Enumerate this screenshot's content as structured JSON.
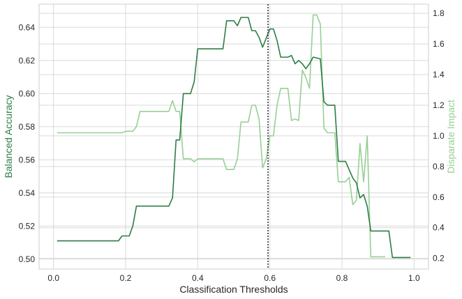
{
  "chart_data": {
    "type": "line",
    "xlabel": "Classification Thresholds",
    "ylabel": "Balanced Accuracy",
    "y2label": "Disparate Impact",
    "xlim": [
      -0.04,
      1.04
    ],
    "ylim": [
      0.494,
      0.654
    ],
    "y2lim": [
      0.13,
      1.86
    ],
    "xticks": [
      "0.0",
      "0.2",
      "0.4",
      "0.6",
      "0.8",
      "1.0"
    ],
    "yticks": [
      "0.50",
      "0.52",
      "0.54",
      "0.56",
      "0.58",
      "0.60",
      "0.62",
      "0.64"
    ],
    "y2ticks": [
      "0.2",
      "0.4",
      "0.6",
      "0.8",
      "1.0",
      "1.2",
      "1.4",
      "1.6",
      "1.8"
    ],
    "grid": true,
    "threshold_marker": 0.595,
    "colors": {
      "balanced_accuracy": "#2e7d46",
      "disparate_impact": "#98cf95",
      "threshold": "#333333",
      "grid": "#d9d9d9",
      "axis_text": "#262626"
    },
    "series": [
      {
        "axis": "left",
        "points": [
          [
            0.01,
            0.511
          ],
          [
            0.18,
            0.511
          ],
          [
            0.19,
            0.514
          ],
          [
            0.21,
            0.514
          ],
          [
            0.22,
            0.52
          ],
          [
            0.23,
            0.532
          ],
          [
            0.31,
            0.532
          ],
          [
            0.32,
            0.532
          ],
          [
            0.33,
            0.537
          ],
          [
            0.34,
            0.572
          ],
          [
            0.35,
            0.572
          ],
          [
            0.36,
            0.6
          ],
          [
            0.38,
            0.6
          ],
          [
            0.39,
            0.607
          ],
          [
            0.4,
            0.627
          ],
          [
            0.47,
            0.627
          ],
          [
            0.48,
            0.644
          ],
          [
            0.5,
            0.644
          ],
          [
            0.51,
            0.641
          ],
          [
            0.52,
            0.646
          ],
          [
            0.54,
            0.646
          ],
          [
            0.55,
            0.638
          ],
          [
            0.56,
            0.638
          ],
          [
            0.57,
            0.634
          ],
          [
            0.58,
            0.628
          ],
          [
            0.6,
            0.639
          ],
          [
            0.61,
            0.639
          ],
          [
            0.62,
            0.632
          ],
          [
            0.63,
            0.622
          ],
          [
            0.65,
            0.622
          ],
          [
            0.66,
            0.623
          ],
          [
            0.67,
            0.618
          ],
          [
            0.68,
            0.62
          ],
          [
            0.69,
            0.618
          ],
          [
            0.7,
            0.615
          ],
          [
            0.71,
            0.618
          ],
          [
            0.72,
            0.622
          ],
          [
            0.74,
            0.621
          ],
          [
            0.75,
            0.595
          ],
          [
            0.76,
            0.593
          ],
          [
            0.78,
            0.593
          ],
          [
            0.79,
            0.559
          ],
          [
            0.81,
            0.559
          ],
          [
            0.82,
            0.554
          ],
          [
            0.83,
            0.549
          ],
          [
            0.84,
            0.546
          ],
          [
            0.85,
            0.537
          ],
          [
            0.86,
            0.539
          ],
          [
            0.87,
            0.532
          ],
          [
            0.88,
            0.517
          ],
          [
            0.93,
            0.517
          ],
          [
            0.94,
            0.501
          ],
          [
            0.99,
            0.501
          ]
        ]
      },
      {
        "axis": "right",
        "points": [
          [
            0.01,
            1.02
          ],
          [
            0.19,
            1.02
          ],
          [
            0.2,
            1.03
          ],
          [
            0.22,
            1.03
          ],
          [
            0.23,
            1.06
          ],
          [
            0.24,
            1.16
          ],
          [
            0.25,
            1.16
          ],
          [
            0.31,
            1.16
          ],
          [
            0.32,
            1.16
          ],
          [
            0.33,
            1.23
          ],
          [
            0.34,
            1.16
          ],
          [
            0.35,
            1.16
          ],
          [
            0.36,
            0.85
          ],
          [
            0.38,
            0.85
          ],
          [
            0.39,
            0.83
          ],
          [
            0.4,
            0.85
          ],
          [
            0.47,
            0.85
          ],
          [
            0.48,
            0.78
          ],
          [
            0.5,
            0.78
          ],
          [
            0.51,
            0.85
          ],
          [
            0.52,
            1.09
          ],
          [
            0.54,
            1.09
          ],
          [
            0.55,
            1.2
          ],
          [
            0.56,
            1.2
          ],
          [
            0.57,
            1.11
          ],
          [
            0.58,
            0.79
          ],
          [
            0.59,
            0.85
          ],
          [
            0.6,
            1.0
          ],
          [
            0.61,
            1.0
          ],
          [
            0.62,
            1.2
          ],
          [
            0.63,
            1.31
          ],
          [
            0.65,
            1.31
          ],
          [
            0.66,
            1.1
          ],
          [
            0.67,
            1.11
          ],
          [
            0.68,
            1.1
          ],
          [
            0.69,
            1.43
          ],
          [
            0.7,
            1.38
          ],
          [
            0.71,
            1.31
          ],
          [
            0.72,
            1.79
          ],
          [
            0.73,
            1.79
          ],
          [
            0.74,
            1.73
          ],
          [
            0.75,
            1.05
          ],
          [
            0.76,
            1.02
          ],
          [
            0.78,
            1.02
          ],
          [
            0.79,
            0.7
          ],
          [
            0.81,
            0.7
          ],
          [
            0.82,
            0.73
          ],
          [
            0.83,
            0.55
          ],
          [
            0.84,
            0.58
          ],
          [
            0.85,
            0.95
          ],
          [
            0.86,
            0.7
          ],
          [
            0.87,
            1.0
          ],
          [
            0.88,
            0.21
          ],
          [
            0.92,
            0.21
          ]
        ]
      }
    ]
  }
}
